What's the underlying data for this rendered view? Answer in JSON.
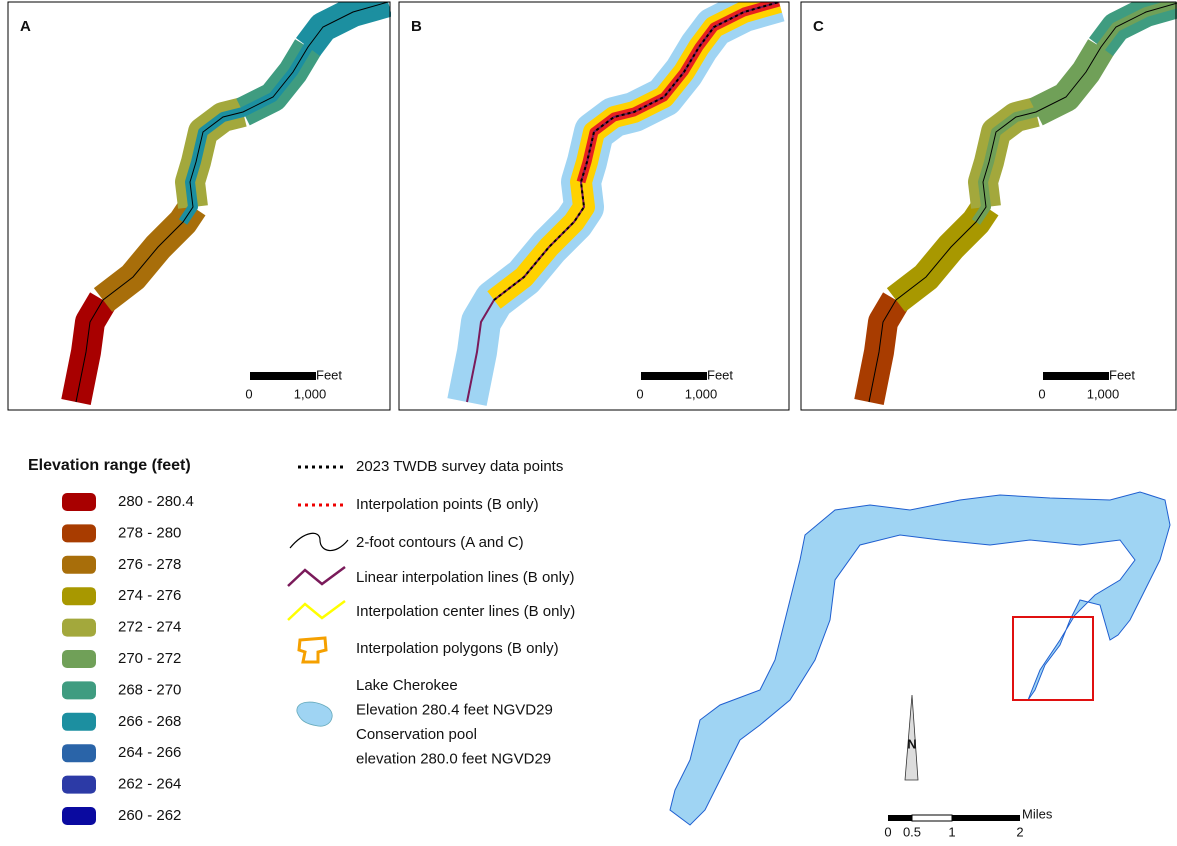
{
  "panels": [
    {
      "label": "A",
      "scale": {
        "unit": "Feet",
        "ticks": [
          "0",
          "1,000"
        ]
      }
    },
    {
      "label": "B",
      "scale": {
        "unit": "Feet",
        "ticks": [
          "0",
          "1,000"
        ]
      }
    },
    {
      "label": "C",
      "scale": {
        "unit": "Feet",
        "ticks": [
          "0",
          "1,000"
        ]
      }
    }
  ],
  "elevation_legend": {
    "title": "Elevation range (feet)",
    "classes": [
      {
        "label": "280 - 280.4",
        "color": "#a80000"
      },
      {
        "label": "278 - 280",
        "color": "#a83c00"
      },
      {
        "label": "276 - 278",
        "color": "#a86e0a"
      },
      {
        "label": "274 - 276",
        "color": "#a89800"
      },
      {
        "label": "272 - 274",
        "color": "#a3a83c"
      },
      {
        "label": "270 - 272",
        "color": "#70a058"
      },
      {
        "label": "268 - 270",
        "color": "#3f9c80"
      },
      {
        "label": "266 - 268",
        "color": "#1c8fa0"
      },
      {
        "label": "264 - 266",
        "color": "#2a64a8"
      },
      {
        "label": "262 - 264",
        "color": "#2c3aa6"
      },
      {
        "label": "260 - 262",
        "color": "#0a0aa0"
      }
    ]
  },
  "symbol_legend": {
    "items": [
      "2023 TWDB survey data points",
      "Interpolation points (B only)",
      "2-foot contours (A and C)",
      "Linear interpolation lines (B only)",
      "Interpolation center lines (B only)",
      "Interpolation polygons (B only)"
    ],
    "lake": [
      "Lake Cherokee",
      "Elevation 280.4 feet NGVD29",
      "Conservation pool",
      "elevation 280.0 feet NGVD29"
    ]
  },
  "location_map": {
    "north": "N",
    "scale": {
      "unit": "Miles",
      "ticks": [
        "0",
        "0.5",
        "1",
        "2"
      ]
    }
  }
}
